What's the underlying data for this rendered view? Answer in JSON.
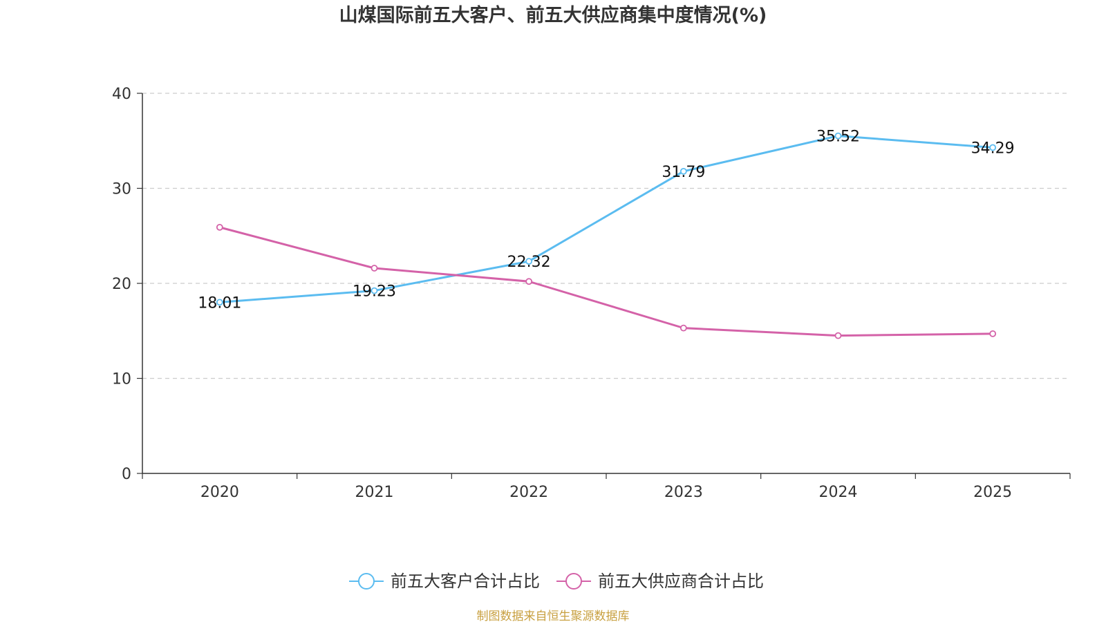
{
  "chart_data": {
    "type": "line",
    "title": "山煤国际前五大客户、前五大供应商集中度情况(%)",
    "categories": [
      "2020",
      "2021",
      "2022",
      "2023",
      "2024",
      "2025"
    ],
    "ylim": [
      0,
      40
    ],
    "yticks": [
      "0",
      "10",
      "20",
      "30",
      "40"
    ],
    "grid": true,
    "legend_position": "bottom-center",
    "series": [
      {
        "name": "前五大客户合计占比",
        "color": "#5bbcf0",
        "values": [
          18.01,
          19.23,
          22.32,
          31.79,
          35.52,
          34.29
        ],
        "labels": [
          "18.01",
          "19.23",
          "22.32",
          "31.79",
          "35.52",
          "34.29"
        ]
      },
      {
        "name": "前五大供应商合计占比",
        "color": "#d462a8",
        "values": [
          25.9,
          21.6,
          20.2,
          15.3,
          14.5,
          14.7
        ]
      }
    ],
    "source": "制图数据来自恒生聚源数据库"
  }
}
